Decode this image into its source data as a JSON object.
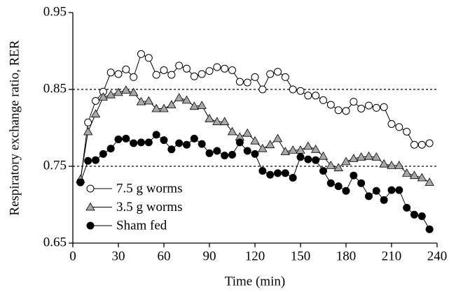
{
  "chart_data": {
    "type": "line",
    "xlabel": "Time (min)",
    "ylabel": "Respiratory exchange ratio, RER",
    "x": [
      5,
      10,
      15,
      20,
      25,
      30,
      35,
      40,
      45,
      50,
      55,
      60,
      65,
      70,
      75,
      80,
      85,
      90,
      95,
      100,
      105,
      110,
      115,
      120,
      125,
      130,
      135,
      140,
      145,
      150,
      155,
      160,
      165,
      170,
      175,
      180,
      185,
      190,
      195,
      200,
      205,
      210,
      215,
      220,
      225,
      230,
      235
    ],
    "series": [
      {
        "name": "7.5 g worms",
        "marker": "circle",
        "color": "#ffffff",
        "values": [
          0.73,
          0.807,
          0.835,
          0.847,
          0.872,
          0.87,
          0.876,
          0.866,
          0.896,
          0.891,
          0.869,
          0.875,
          0.869,
          0.881,
          0.877,
          0.867,
          0.87,
          0.874,
          0.879,
          0.877,
          0.875,
          0.86,
          0.859,
          0.866,
          0.85,
          0.87,
          0.873,
          0.866,
          0.85,
          0.848,
          0.842,
          0.842,
          0.836,
          0.83,
          0.823,
          0.822,
          0.834,
          0.825,
          0.829,
          0.826,
          0.827,
          0.805,
          0.801,
          0.795,
          0.778,
          0.778,
          0.78
        ]
      },
      {
        "name": "3.5 g worms",
        "marker": "triangle",
        "color": "#a8a8a8",
        "values": [
          0.733,
          0.795,
          0.818,
          0.84,
          0.843,
          0.846,
          0.849,
          0.846,
          0.834,
          0.835,
          0.825,
          0.825,
          0.83,
          0.839,
          0.836,
          0.828,
          0.829,
          0.812,
          0.808,
          0.808,
          0.795,
          0.788,
          0.793,
          0.783,
          0.773,
          0.778,
          0.786,
          0.769,
          0.771,
          0.771,
          0.776,
          0.772,
          0.763,
          0.751,
          0.748,
          0.756,
          0.76,
          0.762,
          0.763,
          0.762,
          0.753,
          0.751,
          0.751,
          0.741,
          0.738,
          0.735,
          0.729
        ]
      },
      {
        "name": "Sham fed",
        "marker": "circle",
        "color": "#000000",
        "values": [
          0.729,
          0.757,
          0.758,
          0.766,
          0.773,
          0.785,
          0.786,
          0.78,
          0.781,
          0.781,
          0.791,
          0.784,
          0.772,
          0.78,
          0.778,
          0.786,
          0.779,
          0.767,
          0.77,
          0.764,
          0.765,
          0.781,
          0.77,
          0.766,
          0.744,
          0.739,
          0.741,
          0.741,
          0.735,
          0.762,
          0.759,
          0.758,
          0.744,
          0.728,
          0.724,
          0.718,
          0.738,
          0.728,
          0.711,
          0.718,
          0.706,
          0.719,
          0.719,
          0.696,
          0.687,
          0.685,
          0.668
        ]
      }
    ],
    "xlim": [
      0,
      240
    ],
    "xticks": [
      0,
      30,
      60,
      90,
      120,
      150,
      180,
      210,
      240
    ],
    "ylim": [
      0.65,
      0.95
    ],
    "yticks": [
      0.65,
      0.75,
      0.85,
      0.95
    ],
    "reference_lines": [
      0.75,
      0.85
    ],
    "legend": "lower left"
  }
}
